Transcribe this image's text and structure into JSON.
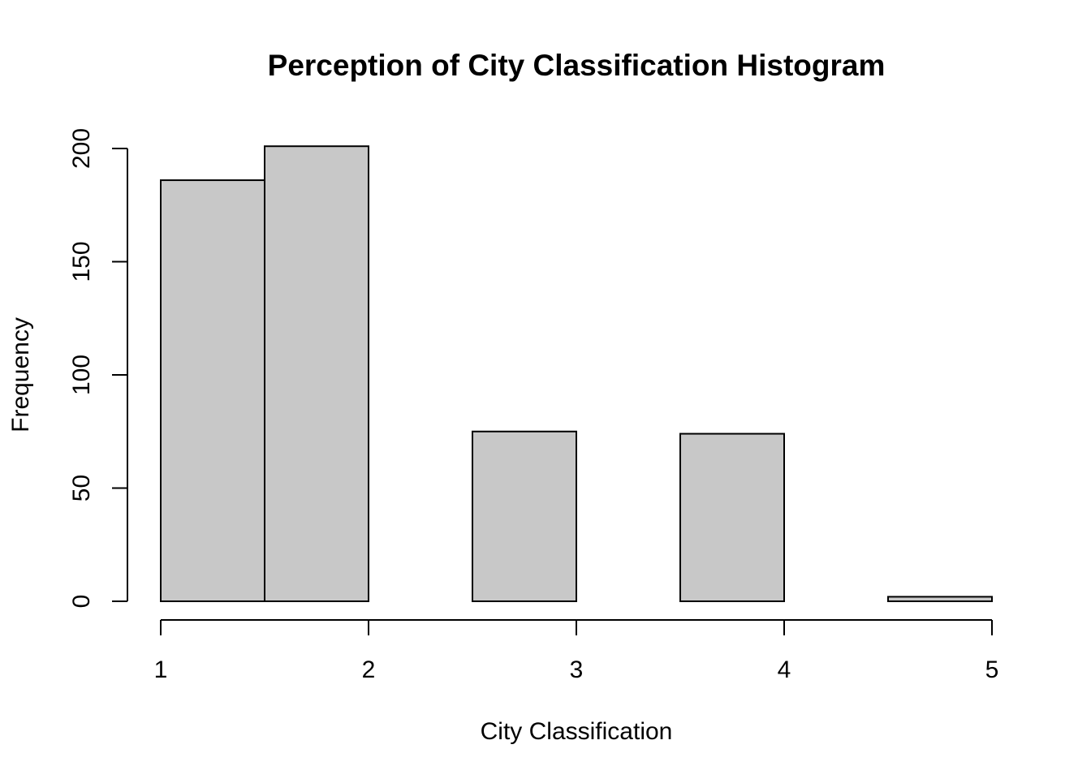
{
  "chart_data": {
    "type": "bar",
    "title": "Perception of City Classification Histogram",
    "xlabel": "City Classification",
    "ylabel": "Frequency",
    "bins": [
      {
        "start": 1.0,
        "end": 1.5,
        "count": 186
      },
      {
        "start": 1.5,
        "end": 2.0,
        "count": 201
      },
      {
        "start": 2.0,
        "end": 2.5,
        "count": 0
      },
      {
        "start": 2.5,
        "end": 3.0,
        "count": 75
      },
      {
        "start": 3.0,
        "end": 3.5,
        "count": 0
      },
      {
        "start": 3.5,
        "end": 4.0,
        "count": 74
      },
      {
        "start": 4.0,
        "end": 4.5,
        "count": 0
      },
      {
        "start": 4.5,
        "end": 5.0,
        "count": 2
      }
    ],
    "xlim": [
      1,
      5
    ],
    "ylim": [
      0,
      200
    ],
    "xticks": [
      "1",
      "2",
      "3",
      "4",
      "5"
    ],
    "yticks": [
      "0",
      "50",
      "100",
      "150",
      "200"
    ],
    "xtick_values": [
      1,
      2,
      3,
      4,
      5
    ],
    "ytick_values": [
      0,
      50,
      100,
      150,
      200
    ],
    "bar_color": "#c8c8c8",
    "grid": false,
    "legend": "none"
  }
}
